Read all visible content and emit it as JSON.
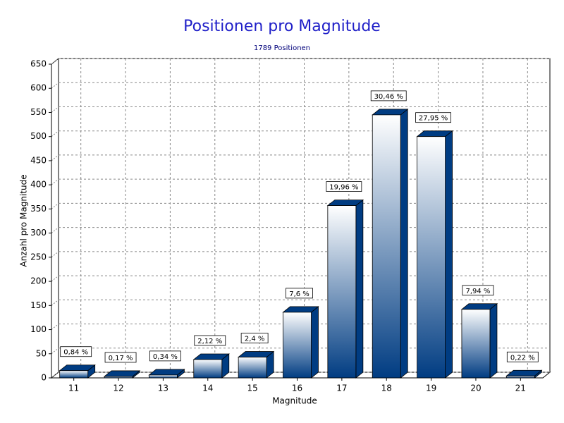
{
  "chart_data": {
    "type": "bar3d",
    "title": "Positionen pro Magnitude",
    "subtitle": "1789 Positionen",
    "x_label": "Magnitude",
    "y_label": "Anzahl pro Magnitude",
    "categories": [
      "11",
      "12",
      "13",
      "14",
      "15",
      "16",
      "17",
      "18",
      "19",
      "20",
      "21"
    ],
    "values": [
      15,
      3,
      6,
      38,
      43,
      136,
      357,
      545,
      500,
      142,
      4
    ],
    "percents": [
      0.84,
      0.17,
      0.34,
      2.12,
      2.4,
      7.6,
      19.96,
      30.46,
      27.95,
      7.94,
      0.22
    ],
    "percent_labels": [
      "0,84 %",
      "0,17 %",
      "0,34 %",
      "2,12 %",
      "2,4 %",
      "7,6 %",
      "19,96 %",
      "30,46 %",
      "27,95 %",
      "7,94 %",
      "0,22 %"
    ],
    "color": "#003c82",
    "ylim": [
      0,
      650
    ],
    "yticks": [
      0,
      50,
      100,
      150,
      200,
      250,
      300,
      350,
      400,
      450,
      500,
      550,
      600,
      650
    ],
    "grid": true
  }
}
